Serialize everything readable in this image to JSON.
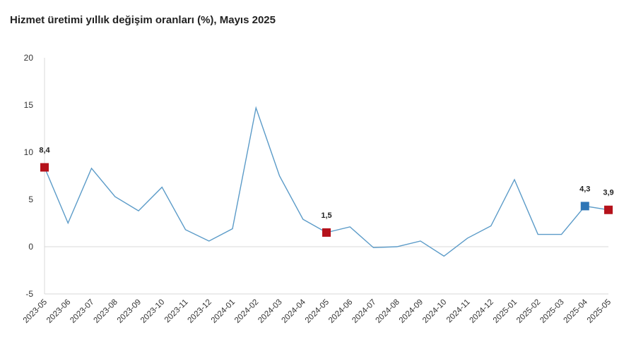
{
  "chart_data": {
    "type": "line",
    "title": "Hizmet üretimi yıllık değişim oranları (%), Mayıs 2025",
    "xlabel": "",
    "ylabel": "",
    "ylim": [
      -5,
      20
    ],
    "yticks": [
      "20",
      "15",
      "10",
      "5",
      "0",
      "-5"
    ],
    "ytick_values": [
      20,
      15,
      10,
      5,
      0,
      -5
    ],
    "grid": false,
    "legend": "none",
    "categories": [
      "2023-05",
      "2023-06",
      "2023-07",
      "2023-08",
      "2023-09",
      "2023-10",
      "2023-11",
      "2023-12",
      "2024-01",
      "2024-02",
      "2024-03",
      "2024-04",
      "2024-05",
      "2024-06",
      "2024-07",
      "2024-08",
      "2024-09",
      "2024-10",
      "2024-11",
      "2024-12",
      "2025-01",
      "2025-02",
      "2025-03",
      "2025-04",
      "2025-05"
    ],
    "series": [
      {
        "values": [
          8.4,
          2.5,
          8.3,
          5.3,
          3.8,
          6.3,
          1.8,
          0.6,
          1.9,
          14.7,
          7.5,
          2.9,
          1.5,
          2.1,
          -0.1,
          0.0,
          0.6,
          -1.0,
          0.9,
          2.2,
          7.1,
          1.3,
          1.3,
          4.3,
          3.9
        ],
        "color": "#5b9bc8"
      }
    ],
    "highlights": [
      {
        "index": 0,
        "label": "8,4",
        "color": "#b5121b"
      },
      {
        "index": 12,
        "label": "1,5",
        "color": "#b5121b"
      },
      {
        "index": 23,
        "label": "4,3",
        "color": "#2e75b6"
      },
      {
        "index": 24,
        "label": "3,9",
        "color": "#b5121b"
      }
    ],
    "colors": {
      "line": "#5b9bc8",
      "axis": "#d9d9d9",
      "text": "#333333"
    }
  }
}
